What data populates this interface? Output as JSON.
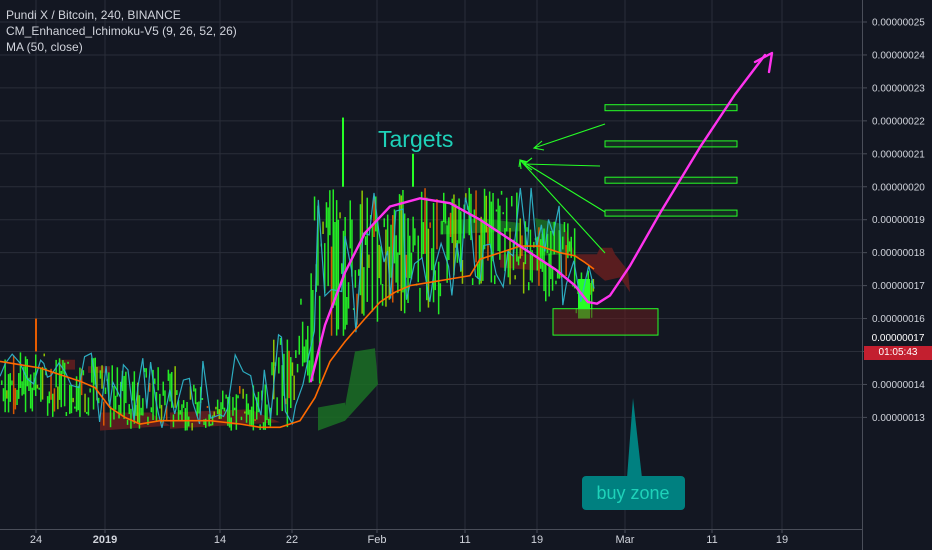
{
  "legend": {
    "symbol": "Pundi X / Bitcoin, 240, BINANCE",
    "indicator": "CM_Enhanced_Ichimoku-V5 (9, 26, 52, 26)",
    "ma": "MA (50, close)"
  },
  "price_axis": {
    "ticks": [
      "0.00000025",
      "0.00000024",
      "0.00000023",
      "0.00000022",
      "0.00000021",
      "0.00000020",
      "0.00000019",
      "0.00000018",
      "0.00000017",
      "0.00000016",
      "0.00000015",
      "0.00000014",
      "0.00000013"
    ],
    "current_price": "0.00000017",
    "countdown": "01:05:43",
    "current_color": "#f23645"
  },
  "time_axis": {
    "ticks": [
      "24",
      "2019",
      "14",
      "22",
      "Feb",
      "11",
      "19",
      "Mar",
      "11",
      "19"
    ],
    "bold": [
      "2019"
    ]
  },
  "annotations": {
    "targets_label": "Targets",
    "buy_zone_label": "buy zone",
    "target_levels": [
      "0.000000224",
      "0.000000213",
      "0.000000202",
      "0.000000192"
    ],
    "buy_zone_range": [
      "0.000000155",
      "0.000000163"
    ]
  },
  "colors": {
    "background": "#131722",
    "axis_text": "#d1d4dc",
    "grid": "#2a2e39",
    "green": "#26ff26",
    "blue": "#2db4c9",
    "ma_line": "#ff6a00",
    "projection": "#ff33ee",
    "label_teal": "#1ed2b9",
    "cloud_green": "#1b6e25",
    "cloud_red": "#661e1e",
    "buy_zone_box": "#008080"
  }
}
